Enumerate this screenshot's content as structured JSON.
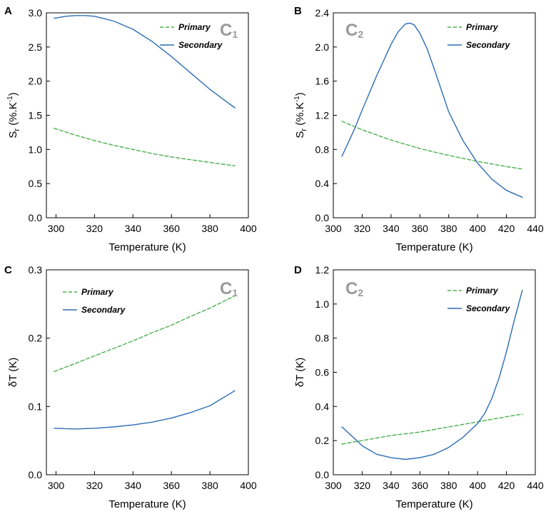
{
  "colors": {
    "primary": "#4caf50",
    "secondary": "#2e6db4",
    "label_gray": "#9a9a9a"
  },
  "chart_data": [
    {
      "type": "line",
      "panel": "A",
      "label_main": "C",
      "label_sub": "1",
      "xlabel": "Temperature (K)",
      "ylabel": "S",
      "ylabel_sub": "r",
      "ylabel_unit": " (%.K",
      "ylabel_sup": "-1",
      "ylabel_close": ")",
      "xlim": [
        295,
        400
      ],
      "ylim": [
        0,
        3.0
      ],
      "xticks": [
        "300",
        "320",
        "340",
        "360",
        "380",
        "400"
      ],
      "yticks": [
        "0.0",
        "0.5",
        "1.0",
        "1.5",
        "2.0",
        "2.5",
        "3.0"
      ],
      "legend": [
        "Primary",
        "Secondary"
      ],
      "series": [
        {
          "name": "Primary",
          "style": "dashed",
          "x": [
            299,
            310,
            320,
            330,
            340,
            350,
            360,
            370,
            380,
            393
          ],
          "y": [
            1.31,
            1.21,
            1.13,
            1.06,
            1.0,
            0.94,
            0.89,
            0.85,
            0.81,
            0.76
          ]
        },
        {
          "name": "Secondary",
          "style": "solid",
          "x": [
            299,
            305,
            310,
            315,
            320,
            330,
            340,
            350,
            360,
            370,
            380,
            390,
            393
          ],
          "y": [
            2.92,
            2.95,
            2.96,
            2.96,
            2.95,
            2.88,
            2.76,
            2.58,
            2.36,
            2.12,
            1.88,
            1.67,
            1.61
          ]
        }
      ]
    },
    {
      "type": "line",
      "panel": "B",
      "label_main": "C",
      "label_sub": "2",
      "xlabel": "Temperature (K)",
      "ylabel": "S",
      "ylabel_sub": "r",
      "ylabel_unit": " (%.K",
      "ylabel_sup": "-1",
      "ylabel_close": ")",
      "xlim": [
        300,
        440
      ],
      "ylim": [
        0,
        2.4
      ],
      "xticks": [
        "300",
        "320",
        "340",
        "360",
        "380",
        "400",
        "420",
        "440"
      ],
      "yticks": [
        "0.0",
        "0.4",
        "0.8",
        "1.2",
        "1.6",
        "2.0",
        "2.4"
      ],
      "legend": [
        "Primary",
        "Secondary"
      ],
      "series": [
        {
          "name": "Primary",
          "style": "dashed",
          "x": [
            306,
            320,
            340,
            360,
            380,
            400,
            420,
            431
          ],
          "y": [
            1.13,
            1.03,
            0.91,
            0.81,
            0.73,
            0.66,
            0.6,
            0.57
          ]
        },
        {
          "name": "Secondary",
          "style": "solid",
          "x": [
            306,
            315,
            320,
            330,
            340,
            345,
            350,
            353,
            356,
            360,
            365,
            370,
            380,
            390,
            400,
            410,
            420,
            431
          ],
          "y": [
            0.72,
            1.05,
            1.26,
            1.66,
            2.03,
            2.18,
            2.27,
            2.28,
            2.26,
            2.16,
            1.98,
            1.74,
            1.24,
            0.9,
            0.64,
            0.45,
            0.32,
            0.24
          ]
        }
      ]
    },
    {
      "type": "line",
      "panel": "C",
      "label_main": "C",
      "label_sub": "1",
      "xlabel": "Temperature (K)",
      "ylabel": "δT (K)",
      "xlim": [
        295,
        400
      ],
      "ylim": [
        0,
        0.3
      ],
      "xticks": [
        "300",
        "320",
        "340",
        "360",
        "380",
        "400"
      ],
      "yticks": [
        "0.0",
        "0.1",
        "0.2",
        "0.3"
      ],
      "legend": [
        "Primary",
        "Secondary"
      ],
      "series": [
        {
          "name": "Primary",
          "style": "dashed",
          "x": [
            299,
            310,
            320,
            330,
            340,
            350,
            360,
            370,
            380,
            393
          ],
          "y": [
            0.151,
            0.163,
            0.174,
            0.185,
            0.196,
            0.208,
            0.219,
            0.232,
            0.244,
            0.262
          ]
        },
        {
          "name": "Secondary",
          "style": "solid",
          "x": [
            299,
            310,
            320,
            330,
            340,
            350,
            360,
            370,
            380,
            393
          ],
          "y": [
            0.068,
            0.067,
            0.068,
            0.07,
            0.073,
            0.077,
            0.083,
            0.091,
            0.101,
            0.123
          ]
        }
      ]
    },
    {
      "type": "line",
      "panel": "D",
      "label_main": "C",
      "label_sub": "2",
      "xlabel": "Temperature (K)",
      "ylabel": "δT (K)",
      "xlim": [
        300,
        440
      ],
      "ylim": [
        0,
        1.2
      ],
      "xticks": [
        "300",
        "320",
        "340",
        "360",
        "380",
        "400",
        "420",
        "440"
      ],
      "yticks": [
        "0.0",
        "0.2",
        "0.4",
        "0.6",
        "0.8",
        "1.0",
        "1.2"
      ],
      "legend": [
        "Primary",
        "Secondary"
      ],
      "series": [
        {
          "name": "Primary",
          "style": "dashed",
          "x": [
            306,
            320,
            340,
            360,
            380,
            400,
            420,
            431
          ],
          "y": [
            0.18,
            0.2,
            0.23,
            0.25,
            0.28,
            0.31,
            0.34,
            0.355
          ]
        },
        {
          "name": "Secondary",
          "style": "solid",
          "x": [
            306,
            315,
            320,
            330,
            340,
            350,
            360,
            370,
            380,
            390,
            395,
            400,
            405,
            410,
            415,
            420,
            425,
            431
          ],
          "y": [
            0.28,
            0.21,
            0.17,
            0.12,
            0.1,
            0.09,
            0.1,
            0.12,
            0.16,
            0.22,
            0.26,
            0.3,
            0.36,
            0.45,
            0.57,
            0.72,
            0.89,
            1.08
          ]
        }
      ]
    }
  ]
}
